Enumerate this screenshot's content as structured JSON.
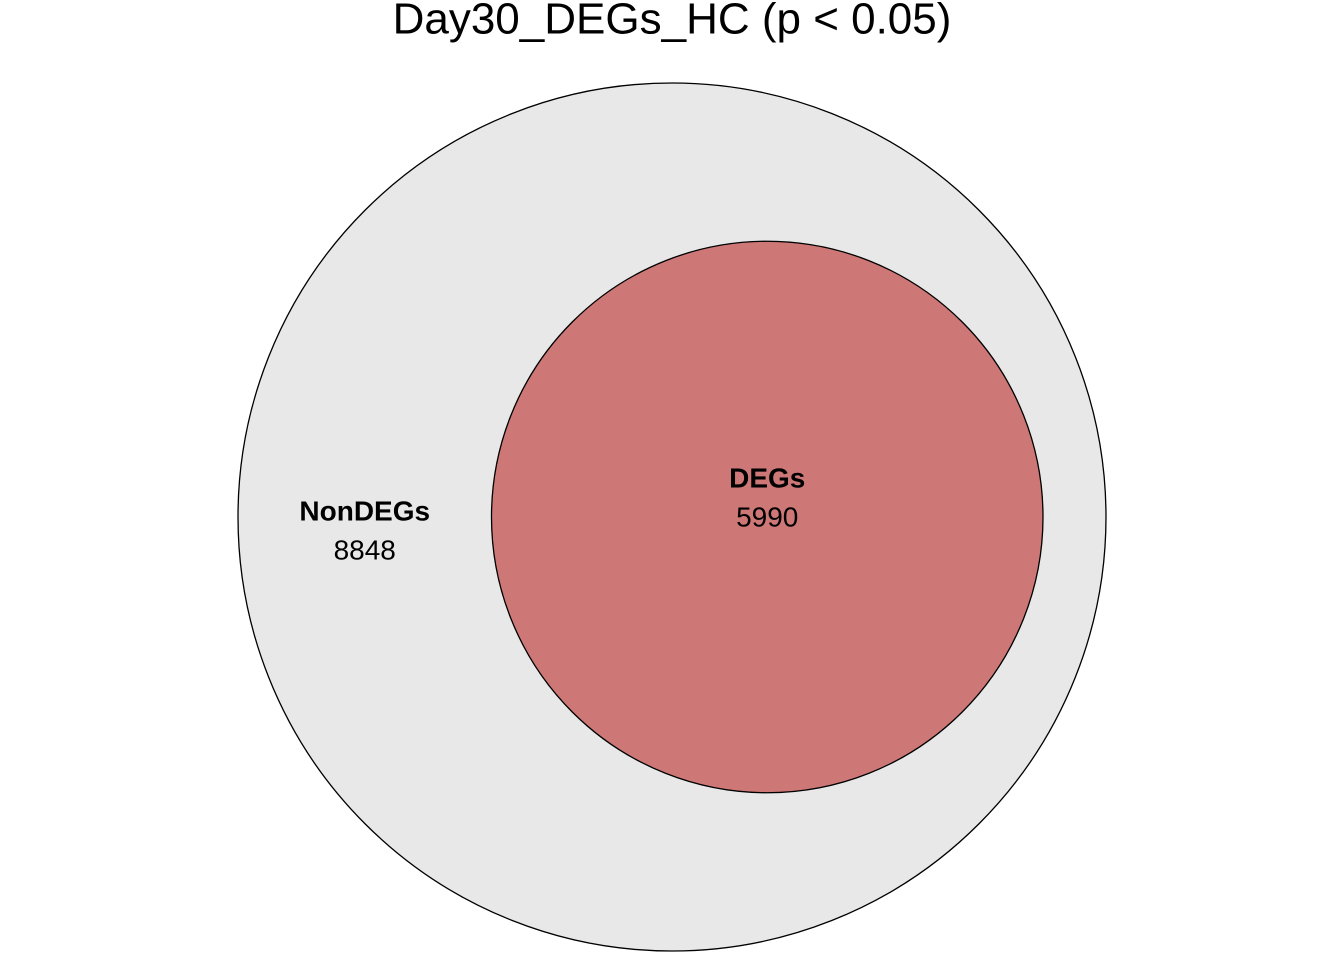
{
  "chart_data": {
    "type": "venn",
    "title": "Day30_DEGs_HC (p < 0.05)",
    "sets": [
      {
        "name": "NonDEGs",
        "value": 8848,
        "color": "#e8e8e8"
      },
      {
        "name": "DEGs",
        "value": 5990,
        "color": "#cd7876"
      }
    ]
  }
}
